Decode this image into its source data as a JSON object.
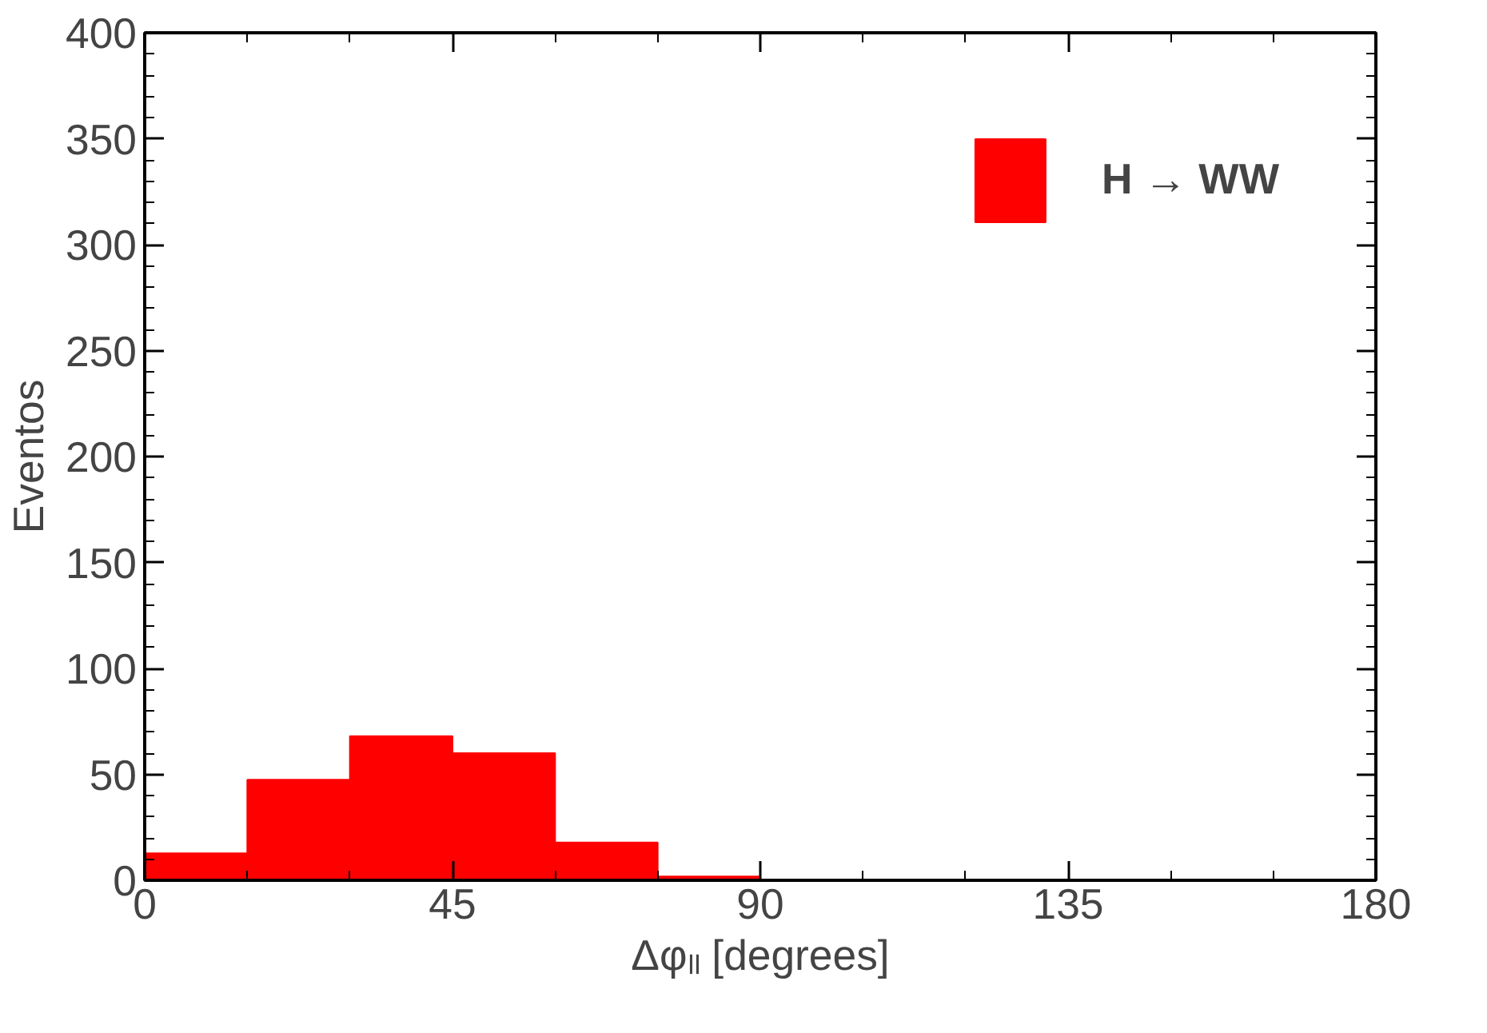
{
  "chart_data": {
    "type": "histogram",
    "xlabel": "Δφₗₗ [degrees]",
    "ylabel": "Eventos",
    "bins": [
      0,
      15,
      30,
      45,
      60,
      75,
      90,
      105,
      120,
      135,
      150,
      165,
      180
    ],
    "series": [
      {
        "name": "H → WW",
        "color": "#ff0000",
        "values": [
          12.7,
          47.5,
          68,
          60,
          17.8,
          1.8,
          0.3,
          0.3,
          0.3,
          0.3,
          0.3,
          0.3
        ]
      }
    ],
    "xlim": [
      0,
      180
    ],
    "xticks": [
      0,
      45,
      90,
      135,
      180
    ],
    "ylim": [
      0,
      400
    ],
    "yticks": [
      0,
      50,
      100,
      150,
      200,
      250,
      300,
      350,
      400
    ],
    "grid": false,
    "legend": "top right"
  }
}
